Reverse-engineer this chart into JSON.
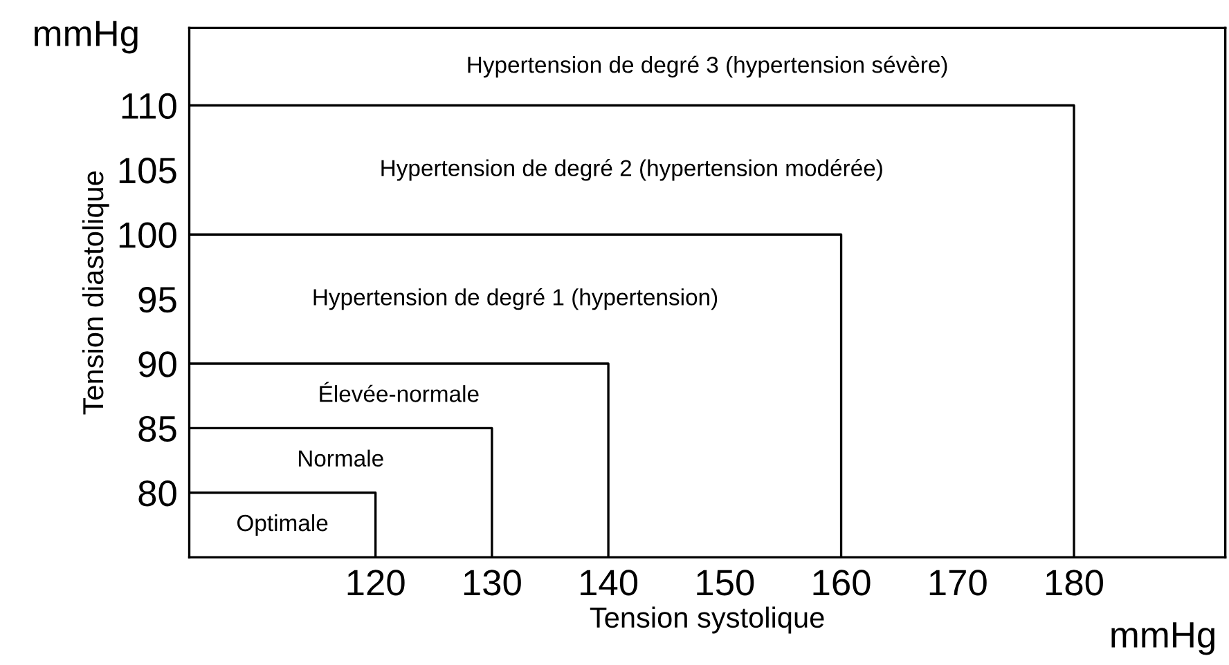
{
  "chart_data": {
    "type": "line",
    "series": [
      {
        "name": "Optimale",
        "color": "#000000",
        "x": [
          104,
          120,
          120
        ],
        "values": [
          80,
          80,
          75
        ]
      },
      {
        "name": "Normale",
        "color": "#000000",
        "x": [
          104,
          130,
          130
        ],
        "values": [
          85,
          85,
          75
        ]
      },
      {
        "name": "Élevée-normale",
        "color": "#000000",
        "x": [
          104,
          140,
          140
        ],
        "values": [
          90,
          90,
          75
        ]
      },
      {
        "name": "Hypertension de degré 1 (hypertension)",
        "color": "#000000",
        "x": [
          104,
          160,
          160
        ],
        "values": [
          100,
          100,
          75
        ]
      },
      {
        "name": "Hypertension de degré 2 (hypertension modérée)",
        "color": "#000000",
        "x": [
          104,
          180,
          180
        ],
        "values": [
          110,
          110,
          75
        ]
      }
    ],
    "xlabel": "Tension systolique",
    "ylabel": "Tension diastolique",
    "annotations": [
      "Hypertension de degré 3 (hypertension sévère)",
      "mmHg",
      "mmHg"
    ],
    "xlim": [
      104,
      193
    ],
    "ylim": [
      75,
      116
    ],
    "xticks": [
      120,
      130,
      140,
      150,
      160,
      170,
      180
    ],
    "yticks": [
      80,
      85,
      90,
      95,
      100,
      105,
      110
    ],
    "legend": false
  }
}
